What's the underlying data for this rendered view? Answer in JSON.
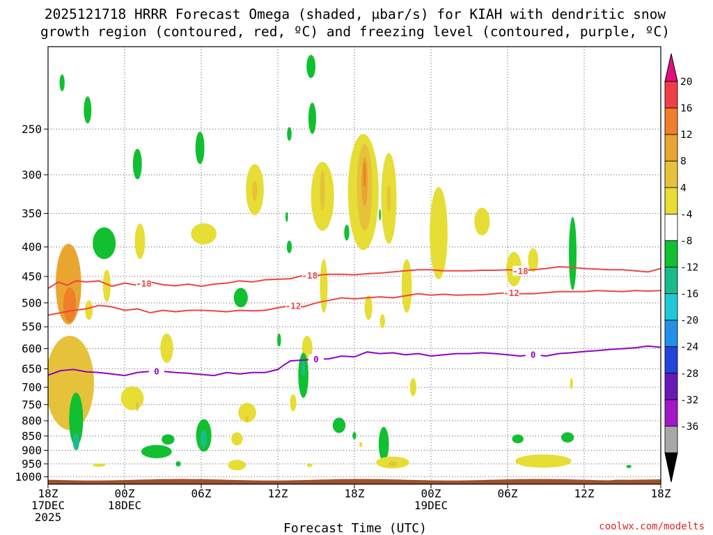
{
  "chart_data": {
    "type": "heatmap",
    "title_line1": "2025121718 HRRR Forecast Omega (shaded, μbar/s) for KIAH with dendritic snow",
    "title_line2": "growth region (contoured, red, ºC) and freezing level (contoured, purple, ºC)",
    "xlabel": "Forecast Time (UTC)",
    "credit": "coolwx.com/modelts",
    "x_range_hours": [
      0,
      48
    ],
    "y_range_hpa": [
      1030,
      180
    ],
    "y_ticks": [
      250,
      300,
      350,
      400,
      450,
      500,
      550,
      600,
      650,
      700,
      750,
      800,
      850,
      900,
      950,
      1000
    ],
    "x_ticks": [
      {
        "h": 0,
        "l1": "18Z",
        "l2": "17DEC",
        "l3": "2025"
      },
      {
        "h": 6,
        "l1": "00Z",
        "l2": "18DEC",
        "l3": ""
      },
      {
        "h": 12,
        "l1": "06Z",
        "l2": "",
        "l3": ""
      },
      {
        "h": 18,
        "l1": "12Z",
        "l2": "",
        "l3": ""
      },
      {
        "h": 24,
        "l1": "18Z",
        "l2": "",
        "l3": ""
      },
      {
        "h": 30,
        "l1": "00Z",
        "l2": "19DEC",
        "l3": ""
      },
      {
        "h": 36,
        "l1": "06Z",
        "l2": "",
        "l3": ""
      },
      {
        "h": 42,
        "l1": "12Z",
        "l2": "",
        "l3": ""
      },
      {
        "h": 48,
        "l1": "18Z",
        "l2": "",
        "l3": ""
      }
    ],
    "colorbar": {
      "labels": [
        "20",
        "16",
        "12",
        "8",
        "4",
        "-4",
        "-8",
        "-12",
        "-16",
        "-20",
        "-24",
        "-28",
        "-32",
        "-36"
      ],
      "colors": [
        "#ef3e48",
        "#ef7f2a",
        "#e8a530",
        "#e6c23a",
        "#e6dd35",
        "#ffffff",
        "#10c030",
        "#18bc8c",
        "#1ec8d8",
        "#2090e8",
        "#2244dc",
        "#6a1ab4",
        "#a018c8",
        "#a8a8a8"
      ],
      "top_arrow_color": "#e2107c",
      "bottom_arrow_color": "#000000"
    },
    "omega_colors": {
      "pos4": "#e6dd35",
      "pos8": "#e6c23a",
      "pos12": "#e8a530",
      "pos16": "#ef7f2a",
      "neg4": "#10c030",
      "neg8": "#18bc8c",
      "neg12": "#1ec8d8"
    },
    "omega_cells": [
      {
        "h": 1.7,
        "p": 700,
        "hw": 1.9,
        "ph": 260,
        "v": 8
      },
      {
        "h": 1.6,
        "p": 470,
        "hw": 1.0,
        "ph": 150,
        "v": 12
      },
      {
        "h": 1.7,
        "p": 505,
        "hw": 0.5,
        "ph": 70,
        "v": 16
      },
      {
        "h": 2.2,
        "p": 800,
        "hw": 0.55,
        "ph": 170,
        "v": -4
      },
      {
        "h": 2.2,
        "p": 870,
        "hw": 0.25,
        "ph": 60,
        "v": -8
      },
      {
        "h": 1.1,
        "p": 208,
        "hw": 0.2,
        "ph": 14,
        "v": -4
      },
      {
        "h": 3.1,
        "p": 232,
        "hw": 0.3,
        "ph": 25,
        "v": -4
      },
      {
        "h": 4.4,
        "p": 395,
        "hw": 0.9,
        "ph": 50,
        "v": -4
      },
      {
        "h": 3.2,
        "p": 515,
        "hw": 0.3,
        "ph": 40,
        "v": 4
      },
      {
        "h": 4.6,
        "p": 468,
        "hw": 0.3,
        "ph": 60,
        "v": 4
      },
      {
        "h": 6.6,
        "p": 732,
        "hw": 0.9,
        "ph": 70,
        "v": 4
      },
      {
        "h": 7.0,
        "p": 755,
        "hw": 0.1,
        "ph": 30,
        "v": 8
      },
      {
        "h": 4.0,
        "p": 955,
        "hw": 0.5,
        "ph": 12,
        "v": 4
      },
      {
        "h": 7.2,
        "p": 392,
        "hw": 0.4,
        "ph": 55,
        "v": 4
      },
      {
        "h": 7.0,
        "p": 288,
        "hw": 0.35,
        "ph": 35,
        "v": -4
      },
      {
        "h": 9.3,
        "p": 600,
        "hw": 0.5,
        "ph": 70,
        "v": 4
      },
      {
        "h": 8.5,
        "p": 905,
        "hw": 1.2,
        "ph": 48,
        "v": -4
      },
      {
        "h": 9.4,
        "p": 862,
        "hw": 0.5,
        "ph": 35,
        "v": -4
      },
      {
        "h": 10.2,
        "p": 950,
        "hw": 0.2,
        "ph": 20,
        "v": -4
      },
      {
        "h": 11.9,
        "p": 270,
        "hw": 0.35,
        "ph": 35,
        "v": -4
      },
      {
        "h": 12.2,
        "p": 380,
        "hw": 1.0,
        "ph": 32,
        "v": 4
      },
      {
        "h": 12.2,
        "p": 850,
        "hw": 0.6,
        "ph": 110,
        "v": -4
      },
      {
        "h": 12.2,
        "p": 860,
        "hw": 0.25,
        "ph": 60,
        "v": -8
      },
      {
        "h": 14.8,
        "p": 860,
        "hw": 0.45,
        "ph": 45,
        "v": 4
      },
      {
        "h": 14.8,
        "p": 955,
        "hw": 0.7,
        "ph": 40,
        "v": 4
      },
      {
        "h": 15.6,
        "p": 775,
        "hw": 0.7,
        "ph": 60,
        "v": 4
      },
      {
        "h": 15.6,
        "p": 795,
        "hw": 0.1,
        "ph": 20,
        "v": 8
      },
      {
        "h": 16.2,
        "p": 320,
        "hw": 0.7,
        "ph": 65,
        "v": 4
      },
      {
        "h": 16.2,
        "p": 320,
        "hw": 0.2,
        "ph": 25,
        "v": 8
      },
      {
        "h": 15.1,
        "p": 490,
        "hw": 0.55,
        "ph": 38,
        "v": -4
      },
      {
        "h": 18.9,
        "p": 400,
        "hw": 0.2,
        "ph": 20,
        "v": -4
      },
      {
        "h": 18.7,
        "p": 355,
        "hw": 0.1,
        "ph": 14,
        "v": -4
      },
      {
        "h": 18.9,
        "p": 255,
        "hw": 0.18,
        "ph": 14,
        "v": -4
      },
      {
        "h": 18.1,
        "p": 580,
        "hw": 0.15,
        "ph": 30,
        "v": -4
      },
      {
        "h": 19.2,
        "p": 745,
        "hw": 0.25,
        "ph": 50,
        "v": 4
      },
      {
        "h": 20.3,
        "p": 600,
        "hw": 0.4,
        "ph": 60,
        "v": 4
      },
      {
        "h": 20.0,
        "p": 670,
        "hw": 0.4,
        "ph": 120,
        "v": -4
      },
      {
        "h": 20.0,
        "p": 650,
        "hw": 0.15,
        "ph": 40,
        "v": -8
      },
      {
        "h": 20.7,
        "p": 240,
        "hw": 0.3,
        "ph": 30,
        "v": -4
      },
      {
        "h": 20.6,
        "p": 195,
        "hw": 0.35,
        "ph": 18,
        "v": -4
      },
      {
        "h": 20.5,
        "p": 955,
        "hw": 0.2,
        "ph": 15,
        "v": 4
      },
      {
        "h": 21.5,
        "p": 330,
        "hw": 0.9,
        "ph": 90,
        "v": 4
      },
      {
        "h": 21.5,
        "p": 320,
        "hw": 0.2,
        "ph": 50,
        "v": 8
      },
      {
        "h": 21.6,
        "p": 470,
        "hw": 0.3,
        "ph": 100,
        "v": 4
      },
      {
        "h": 22.8,
        "p": 815,
        "hw": 0.5,
        "ph": 50,
        "v": -4
      },
      {
        "h": 23.4,
        "p": 378,
        "hw": 0.2,
        "ph": 24,
        "v": -4
      },
      {
        "h": 24.7,
        "p": 330,
        "hw": 1.2,
        "ph": 150,
        "v": 4
      },
      {
        "h": 24.8,
        "p": 320,
        "hw": 0.6,
        "ph": 110,
        "v": 8
      },
      {
        "h": 24.8,
        "p": 310,
        "hw": 0.25,
        "ph": 60,
        "v": 12
      },
      {
        "h": 24.8,
        "p": 300,
        "hw": 0.1,
        "ph": 30,
        "v": 16
      },
      {
        "h": 24.0,
        "p": 849,
        "hw": 0.15,
        "ph": 25,
        "v": -4
      },
      {
        "h": 24.5,
        "p": 880,
        "hw": 0.12,
        "ph": 18,
        "v": 4
      },
      {
        "h": 25.1,
        "p": 510,
        "hw": 0.3,
        "ph": 50,
        "v": 4
      },
      {
        "h": 26.7,
        "p": 335,
        "hw": 0.6,
        "ph": 120,
        "v": 4
      },
      {
        "h": 26.7,
        "p": 330,
        "hw": 0.15,
        "ph": 35,
        "v": 8
      },
      {
        "h": 26.0,
        "p": 352,
        "hw": 0.08,
        "ph": 16,
        "v": -4
      },
      {
        "h": 26.2,
        "p": 538,
        "hw": 0.2,
        "ph": 30,
        "v": 4
      },
      {
        "h": 26.3,
        "p": 880,
        "hw": 0.4,
        "ph": 120,
        "v": -4
      },
      {
        "h": 27.0,
        "p": 945,
        "hw": 1.3,
        "ph": 45,
        "v": 4
      },
      {
        "h": 27.0,
        "p": 950,
        "hw": 0.35,
        "ph": 18,
        "v": 8
      },
      {
        "h": 28.1,
        "p": 470,
        "hw": 0.4,
        "ph": 100,
        "v": 4
      },
      {
        "h": 28.6,
        "p": 700,
        "hw": 0.25,
        "ph": 50,
        "v": 4
      },
      {
        "h": 30.6,
        "p": 385,
        "hw": 0.7,
        "ph": 140,
        "v": 4
      },
      {
        "h": 34.0,
        "p": 362,
        "hw": 0.6,
        "ph": 40,
        "v": 4
      },
      {
        "h": 36.5,
        "p": 438,
        "hw": 0.6,
        "ph": 60,
        "v": 4
      },
      {
        "h": 36.8,
        "p": 860,
        "hw": 0.45,
        "ph": 30,
        "v": -4
      },
      {
        "h": 38.0,
        "p": 422,
        "hw": 0.4,
        "ph": 40,
        "v": 4
      },
      {
        "h": 38.8,
        "p": 940,
        "hw": 2.2,
        "ph": 50,
        "v": 4
      },
      {
        "h": 40.7,
        "p": 855,
        "hw": 0.5,
        "ph": 35,
        "v": -4
      },
      {
        "h": 41.1,
        "p": 415,
        "hw": 0.3,
        "ph": 120,
        "v": -4
      },
      {
        "h": 41.0,
        "p": 690,
        "hw": 0.12,
        "ph": 30,
        "v": 4
      },
      {
        "h": 45.5,
        "p": 960,
        "hw": 0.2,
        "ph": 12,
        "v": -4
      }
    ],
    "contours": [
      {
        "label": "-18",
        "color": "#ee4444",
        "h": [
          0,
          0.8,
          1.5,
          2.2,
          3,
          4,
          5,
          6,
          7,
          8,
          9,
          10,
          11,
          12,
          13,
          14,
          15,
          16,
          17,
          18,
          19,
          20,
          21,
          22,
          23,
          24,
          25,
          26,
          27,
          28,
          29,
          30,
          31,
          32,
          33,
          34,
          35,
          36,
          37,
          38,
          39,
          40,
          41,
          42,
          43,
          44,
          45,
          46,
          47,
          48
        ],
        "p": [
          472,
          460,
          466,
          458,
          460,
          458,
          468,
          462,
          466,
          460,
          465,
          467,
          464,
          468,
          464,
          462,
          458,
          460,
          456,
          455,
          454,
          448,
          448,
          446,
          446,
          447,
          445,
          444,
          442,
          440,
          438,
          438,
          440,
          440,
          440,
          439,
          439,
          438,
          440,
          438,
          436,
          433,
          434,
          436,
          437,
          438,
          438,
          440,
          442,
          436
        ],
        "labels_at": [
          7.5,
          20.5,
          37.0
        ]
      },
      {
        "label": "-12",
        "color": "#ee4444",
        "h": [
          0,
          1,
          2,
          3,
          4,
          5,
          6,
          7,
          8,
          9,
          10,
          11,
          12,
          13,
          14,
          15,
          16,
          17,
          18,
          19,
          20,
          21,
          22,
          23,
          24,
          25,
          26,
          27,
          28,
          29,
          30,
          31,
          32,
          33,
          34,
          35,
          36,
          37,
          38,
          39,
          40,
          41,
          42,
          43,
          44,
          45,
          46,
          47,
          48
        ],
        "p": [
          525,
          520,
          515,
          512,
          505,
          508,
          515,
          512,
          520,
          515,
          518,
          515,
          515,
          516,
          518,
          515,
          516,
          515,
          510,
          505,
          508,
          500,
          495,
          490,
          492,
          490,
          488,
          490,
          486,
          482,
          485,
          483,
          485,
          484,
          484,
          482,
          480,
          482,
          482,
          480,
          478,
          478,
          478,
          476,
          477,
          478,
          476,
          477,
          476
        ],
        "labels_at": [
          19.2,
          36.3
        ]
      },
      {
        "label": "0",
        "color": "#9200c6",
        "h": [
          0,
          1,
          2,
          3,
          4,
          5,
          6,
          7,
          8,
          9,
          10,
          11,
          12,
          13,
          14,
          15,
          16,
          17,
          18,
          18.5,
          19,
          20,
          21,
          22,
          23,
          24,
          25,
          26,
          27,
          28,
          29,
          30,
          31,
          32,
          33,
          34,
          35,
          36,
          37,
          38,
          39,
          40,
          41,
          42,
          43,
          44,
          45,
          46,
          47,
          48
        ],
        "p": [
          667,
          655,
          652,
          658,
          660,
          664,
          668,
          660,
          657,
          657,
          660,
          662,
          665,
          668,
          660,
          664,
          660,
          660,
          652,
          640,
          630,
          628,
          626,
          625,
          618,
          620,
          608,
          612,
          610,
          615,
          612,
          618,
          615,
          612,
          612,
          610,
          612,
          615,
          618,
          614,
          618,
          612,
          610,
          607,
          605,
          602,
          600,
          598,
          594,
          597
        ],
        "labels_at": [
          8.5,
          21.0,
          38.0
        ]
      }
    ]
  }
}
